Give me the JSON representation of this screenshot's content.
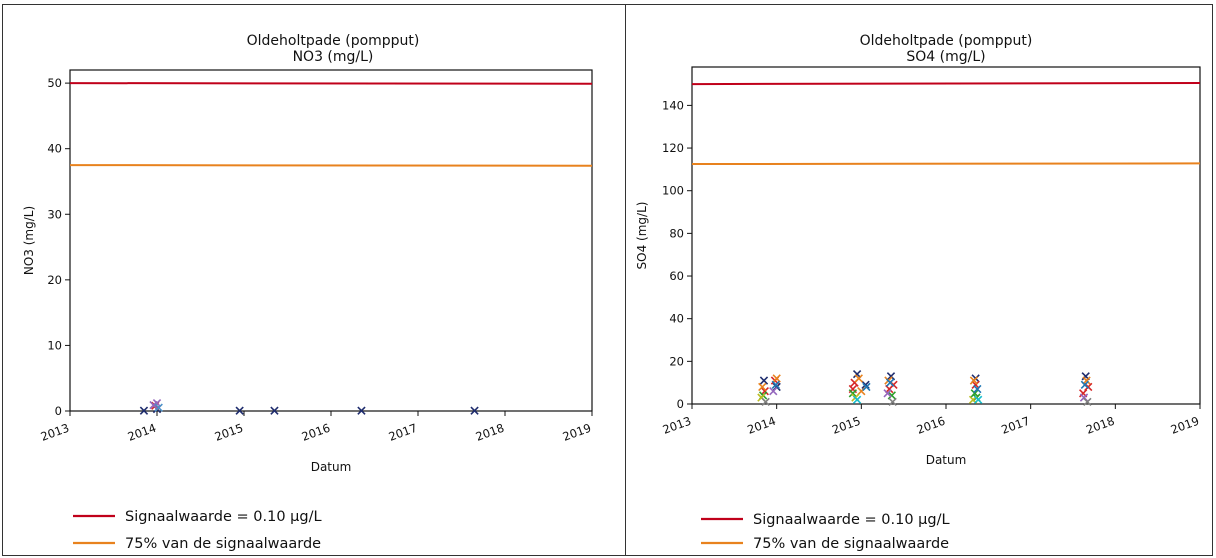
{
  "chart_data": [
    {
      "type": "scatter",
      "title": "Oldeholtpade (pompput)",
      "subtitle": "NO3 (mg/L)",
      "xlabel": "Datum",
      "ylabel": "NO3 (mg/L)",
      "xlim": [
        2013,
        2019
      ],
      "ylim": [
        0,
        52
      ],
      "x_ticks": [
        "2013",
        "2014",
        "2015",
        "2016",
        "2017",
        "2018",
        "2019"
      ],
      "y_ticks": [
        0,
        10,
        20,
        30,
        40,
        50
      ],
      "grid": false,
      "legend_position": "bottom-left",
      "reference_lines": [
        {
          "name": "Signaalwaarde = 0.10 µg/L",
          "y": 50,
          "y_end": 49.9,
          "color": "#c0001a"
        },
        {
          "name": "75% van de signaalwaarde",
          "y": 37.5,
          "y_end": 37.4,
          "color": "#e8821e"
        }
      ],
      "series": [
        {
          "color": "#1f2d6e",
          "points": [
            [
              2013.85,
              0.05
            ],
            [
              2014.95,
              0.05
            ],
            [
              2015.35,
              0.05
            ],
            [
              2016.35,
              0.05
            ],
            [
              2017.65,
              0.05
            ],
            [
              2014.0,
              0.3
            ]
          ]
        },
        {
          "color": "#d62728",
          "points": [
            [
              2013.98,
              0.8
            ]
          ]
        },
        {
          "color": "#9467bd",
          "points": [
            [
              2014.0,
              1.2
            ],
            [
              2013.96,
              0.9
            ]
          ]
        },
        {
          "color": "#4d90c8",
          "points": [
            [
              2014.02,
              0.5
            ]
          ]
        }
      ]
    },
    {
      "type": "scatter",
      "title": "Oldeholtpade (pompput)",
      "subtitle": "SO4 (mg/L)",
      "xlabel": "Datum",
      "ylabel": "SO4 (mg/L)",
      "xlim": [
        2013,
        2019
      ],
      "ylim": [
        0,
        158
      ],
      "x_ticks": [
        "2013",
        "2014",
        "2015",
        "2016",
        "2017",
        "2018",
        "2019"
      ],
      "y_ticks": [
        0,
        20,
        40,
        60,
        80,
        100,
        120,
        140
      ],
      "grid": false,
      "legend_position": "bottom-left",
      "reference_lines": [
        {
          "name": "Signaalwaarde = 0.10 µg/L",
          "y": 150,
          "y_end": 150.5,
          "color": "#c0001a"
        },
        {
          "name": "75% van de signaalwaarde",
          "y": 112.5,
          "y_end": 112.8,
          "color": "#e8821e"
        }
      ],
      "series": [
        {
          "color": "#1f2d6e",
          "points": [
            [
              2013.85,
              11
            ],
            [
              2014.95,
              14
            ],
            [
              2015.35,
              13
            ],
            [
              2016.35,
              12
            ],
            [
              2017.65,
              13
            ],
            [
              2014.0,
              8
            ],
            [
              2015.05,
              9
            ]
          ]
        },
        {
          "color": "#d62728",
          "points": [
            [
              2013.98,
              11
            ],
            [
              2014.92,
              10
            ],
            [
              2015.38,
              9
            ],
            [
              2016.35,
              9
            ],
            [
              2017.68,
              8
            ],
            [
              2013.86,
              6
            ],
            [
              2014.9,
              7
            ],
            [
              2015.33,
              7
            ],
            [
              2017.62,
              5
            ]
          ]
        },
        {
          "color": "#e8821e",
          "points": [
            [
              2013.83,
              8
            ],
            [
              2014.0,
              12
            ],
            [
              2014.97,
              12
            ],
            [
              2015.32,
              11
            ],
            [
              2016.33,
              11
            ],
            [
              2017.66,
              11
            ],
            [
              2015.0,
              6
            ]
          ]
        },
        {
          "color": "#2ca02c",
          "points": [
            [
              2013.84,
              4
            ],
            [
              2014.9,
              5
            ],
            [
              2016.34,
              5
            ],
            [
              2016.36,
              3
            ],
            [
              2015.36,
              4
            ]
          ]
        },
        {
          "color": "#1f77b4",
          "points": [
            [
              2013.99,
              9
            ],
            [
              2015.06,
              8
            ],
            [
              2015.34,
              10
            ],
            [
              2016.37,
              7
            ],
            [
              2017.64,
              9
            ]
          ]
        },
        {
          "color": "#bcbd22",
          "points": [
            [
              2013.82,
              3
            ],
            [
              2014.93,
              3
            ],
            [
              2016.32,
              2
            ]
          ]
        },
        {
          "color": "#9467bd",
          "points": [
            [
              2013.96,
              6
            ],
            [
              2015.31,
              5
            ],
            [
              2017.63,
              3
            ]
          ]
        },
        {
          "color": "#17becf",
          "points": [
            [
              2014.95,
              2
            ],
            [
              2016.38,
              2
            ]
          ]
        },
        {
          "color": "#7f7f7f",
          "points": [
            [
              2013.87,
              1
            ],
            [
              2015.37,
              1
            ],
            [
              2017.67,
              1
            ]
          ]
        }
      ]
    }
  ]
}
